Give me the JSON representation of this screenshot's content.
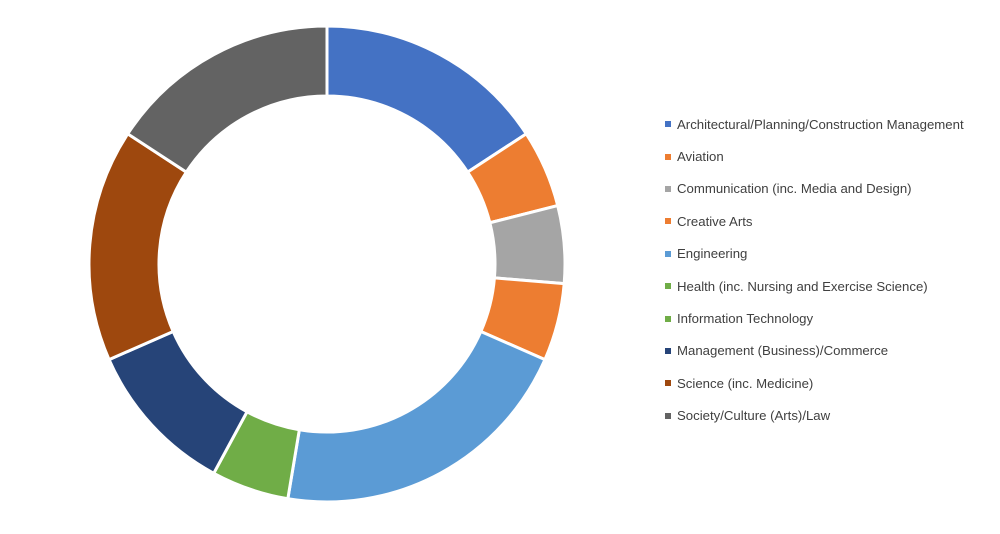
{
  "chart_data": {
    "type": "pie",
    "donut": true,
    "title": "",
    "legend_position": "right",
    "categories": [
      "Architectural/Planning/Construction Management",
      "Aviation",
      "Communication (inc. Media and Design)",
      "Creative Arts",
      "Engineering",
      "Health (inc. Nursing and Exercise Science)",
      "Information Technology",
      "Management (Business)/Commerce",
      "Science (inc. Medicine)",
      "Society/Culture (Arts)/Law"
    ],
    "values": [
      16.2,
      5.4,
      5.4,
      5.4,
      21.6,
      0,
      5.4,
      10.8,
      16.2,
      16.2
    ],
    "colors": [
      "#4472c4",
      "#ed7d31",
      "#a5a5a5",
      "#ed7d31",
      "#5b9bd5",
      "#70ad47",
      "#70ad47",
      "#264478",
      "#9e480e",
      "#636363"
    ]
  }
}
